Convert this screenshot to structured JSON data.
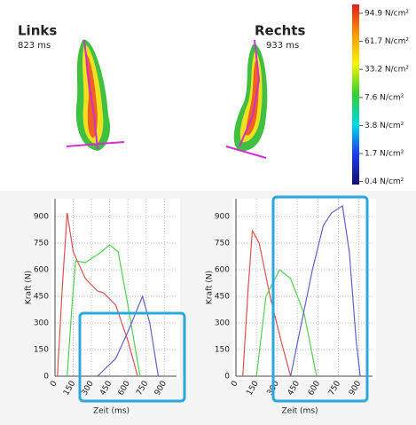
{
  "footprints": [
    {
      "side": "Links",
      "duration": "823 ms"
    },
    {
      "side": "Rechts",
      "duration": "933 ms"
    }
  ],
  "legend": {
    "labels": [
      "94.9 N/cm²",
      "61.7 N/cm²",
      "33.2 N/cm²",
      "7.6 N/cm²",
      "3.8 N/cm²",
      "1.7 N/cm²",
      "0.4 N/cm²"
    ]
  },
  "chart_data": [
    {
      "type": "line",
      "y_label": "Kraft (N)",
      "x_label": "Zeit (ms)",
      "xlim": [
        0,
        1000
      ],
      "ylim": [
        0,
        1000
      ],
      "xticks": [
        0,
        150,
        300,
        450,
        600,
        750,
        900
      ],
      "yticks": [
        0,
        150,
        300,
        450,
        600,
        750,
        900
      ],
      "grid": true,
      "series": [
        {
          "color": "#e05050",
          "x": [
            20,
            60,
            100,
            150,
            250,
            350,
            400,
            500,
            600,
            680
          ],
          "values": [
            0,
            500,
            920,
            700,
            550,
            480,
            470,
            400,
            200,
            0
          ]
        },
        {
          "color": "#50d050",
          "x": [
            100,
            140,
            170,
            250,
            380,
            450,
            520,
            600,
            700
          ],
          "values": [
            0,
            400,
            650,
            640,
            700,
            740,
            700,
            400,
            0
          ]
        },
        {
          "color": "#6060d0",
          "x": [
            350,
            500,
            600,
            720,
            780,
            850
          ],
          "values": [
            0,
            100,
            250,
            450,
            300,
            0
          ]
        }
      ]
    },
    {
      "type": "line",
      "y_label": "Kraft (N)",
      "x_label": "Zeit (ms)",
      "xlim": [
        0,
        1000
      ],
      "ylim": [
        0,
        1000
      ],
      "xticks": [
        0,
        150,
        300,
        450,
        600,
        750,
        900
      ],
      "yticks": [
        0,
        150,
        300,
        450,
        600,
        750,
        900
      ],
      "grid": true,
      "series": [
        {
          "color": "#e05050",
          "x": [
            50,
            90,
            120,
            170,
            250,
            330,
            400
          ],
          "values": [
            0,
            500,
            820,
            750,
            450,
            200,
            0
          ]
        },
        {
          "color": "#50d050",
          "x": [
            150,
            220,
            320,
            400,
            500,
            590
          ],
          "values": [
            0,
            450,
            600,
            550,
            350,
            0
          ]
        },
        {
          "color": "#6060d0",
          "x": [
            400,
            480,
            560,
            640,
            700,
            780,
            830,
            880,
            910
          ],
          "values": [
            0,
            300,
            600,
            850,
            920,
            960,
            700,
            200,
            0
          ]
        }
      ]
    }
  ]
}
